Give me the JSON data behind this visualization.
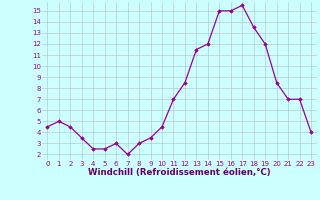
{
  "hours": [
    0,
    1,
    2,
    3,
    4,
    5,
    6,
    7,
    8,
    9,
    10,
    11,
    12,
    13,
    14,
    15,
    16,
    17,
    18,
    19,
    20,
    21,
    22,
    23
  ],
  "values": [
    4.5,
    5.0,
    4.5,
    3.5,
    2.5,
    2.5,
    3.0,
    2.0,
    3.0,
    3.5,
    4.5,
    7.0,
    8.5,
    11.5,
    12.0,
    15.0,
    15.0,
    15.5,
    13.5,
    12.0,
    8.5,
    7.0,
    7.0,
    4.0
  ],
  "line_color": "#990099",
  "marker": "D",
  "marker_size": 1.8,
  "bg_color": "#ccffff",
  "grid_color": "#bbbbbb",
  "xlabel": "Windchill (Refroidissement éolien,°C)",
  "xlabel_color": "#660066",
  "tick_color": "#990099",
  "ylim": [
    1.5,
    15.8
  ],
  "yticks": [
    2,
    3,
    4,
    5,
    6,
    7,
    8,
    9,
    10,
    11,
    12,
    13,
    14,
    15
  ],
  "xlim": [
    -0.5,
    23.5
  ],
  "tick_fontsize": 5.0,
  "xlabel_fontsize": 6.2
}
